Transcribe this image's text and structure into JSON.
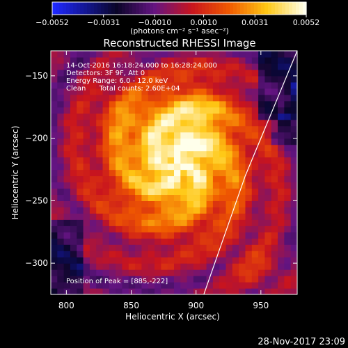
{
  "chart_data": {
    "type": "heatmap",
    "title": "Reconstructed RHESSI Image",
    "xlabel": "Heliocentric X (arcsec)",
    "ylabel": "Heliocentric Y (arcsec)",
    "xlim": [
      788,
      978
    ],
    "ylim": [
      -325,
      -130
    ],
    "x_ticks": [
      800,
      850,
      900,
      950
    ],
    "y_ticks": [
      -150,
      -200,
      -250,
      -300
    ],
    "colorbar": {
      "min": -0.0052,
      "max": 0.0052,
      "ticks": [
        -0.0052,
        -0.0031,
        -0.001,
        0.001,
        0.0031,
        0.0052
      ],
      "tick_labels": [
        "−0.0052",
        "−0.0031",
        "−0.0010",
        "0.0010",
        "0.0031",
        "0.0052"
      ],
      "unit_label": "(photons cm⁻² s⁻¹ asec⁻²)"
    },
    "peak": [
      885,
      -222
    ],
    "limb_line": [
      [
        906,
        -325
      ],
      [
        938,
        -230
      ],
      [
        978,
        -130
      ]
    ],
    "annotations": [
      "14-Oct-2016 16:18:24.000 to 16:28:24.000",
      "Detectors: 3F 9F, Att 0",
      "Energy Range: 6.0 - 12.0 keV",
      "Clean      Total counts: 2.60E+04"
    ],
    "peak_label": "Position of Peak = [885,-222]"
  },
  "footer_timestamp": "28-Nov-2017 23:09"
}
